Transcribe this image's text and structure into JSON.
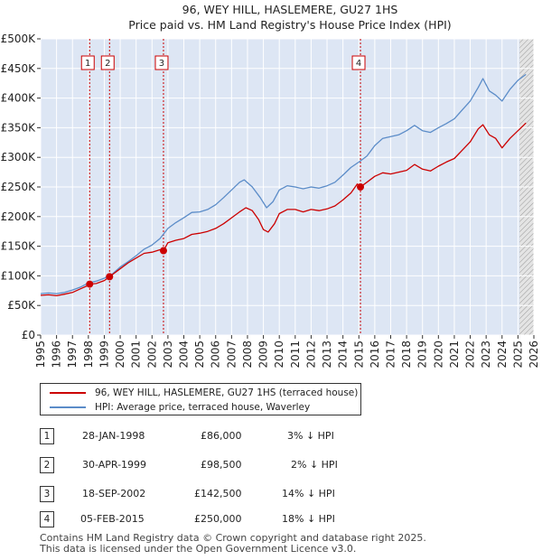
{
  "chart_data": {
    "type": "line",
    "title": "96, WEY HILL, HASLEMERE, GU27 1HS",
    "subtitle": "Price paid vs. HM Land Registry's House Price Index (HPI)",
    "xlim": [
      1995,
      2026
    ],
    "ylim": [
      0,
      500000
    ],
    "y_ticks": [
      {
        "value": 0,
        "label": "£0"
      },
      {
        "value": 50000,
        "label": "£50K"
      },
      {
        "value": 100000,
        "label": "£100K"
      },
      {
        "value": 150000,
        "label": "£150K"
      },
      {
        "value": 200000,
        "label": "£200K"
      },
      {
        "value": 250000,
        "label": "£250K"
      },
      {
        "value": 300000,
        "label": "£300K"
      },
      {
        "value": 350000,
        "label": "£350K"
      },
      {
        "value": 400000,
        "label": "£400K"
      },
      {
        "value": 450000,
        "label": "£450K"
      },
      {
        "value": 500000,
        "label": "£500K"
      }
    ],
    "x_ticks": [
      1995,
      1996,
      1997,
      1998,
      1999,
      2000,
      2001,
      2002,
      2003,
      2004,
      2005,
      2006,
      2007,
      2008,
      2009,
      2010,
      2011,
      2012,
      2013,
      2014,
      2015,
      2016,
      2017,
      2018,
      2019,
      2020,
      2021,
      2022,
      2023,
      2024,
      2025,
      2026
    ],
    "shaded_region": {
      "from": 2025.1,
      "to": 2026
    },
    "series": [
      {
        "name": "96, WEY HILL, HASLEMERE, GU27 1HS (terraced house)",
        "color": "#cc0000",
        "points": [
          [
            1995.0,
            67000
          ],
          [
            1995.5,
            68000
          ],
          [
            1996.0,
            66500
          ],
          [
            1996.5,
            69000
          ],
          [
            1997.0,
            72000
          ],
          [
            1997.5,
            78000
          ],
          [
            1998.0,
            84000
          ],
          [
            1998.08,
            86000
          ],
          [
            1998.5,
            87000
          ],
          [
            1999.0,
            92000
          ],
          [
            1999.33,
            98500
          ],
          [
            1999.8,
            108000
          ],
          [
            2000.5,
            122000
          ],
          [
            2001.0,
            130000
          ],
          [
            2001.5,
            138000
          ],
          [
            2002.0,
            140000
          ],
          [
            2002.5,
            144000
          ],
          [
            2002.72,
            142500
          ],
          [
            2003.0,
            156000
          ],
          [
            2003.5,
            160000
          ],
          [
            2004.0,
            163000
          ],
          [
            2004.5,
            170000
          ],
          [
            2005.0,
            172000
          ],
          [
            2005.5,
            175000
          ],
          [
            2006.0,
            180000
          ],
          [
            2006.5,
            188000
          ],
          [
            2007.0,
            198000
          ],
          [
            2007.5,
            208000
          ],
          [
            2007.9,
            215000
          ],
          [
            2008.3,
            210000
          ],
          [
            2008.7,
            195000
          ],
          [
            2009.0,
            178000
          ],
          [
            2009.3,
            174000
          ],
          [
            2009.7,
            188000
          ],
          [
            2010.0,
            205000
          ],
          [
            2010.5,
            212000
          ],
          [
            2011.0,
            212000
          ],
          [
            2011.5,
            208000
          ],
          [
            2012.0,
            212000
          ],
          [
            2012.5,
            210000
          ],
          [
            2013.0,
            213000
          ],
          [
            2013.5,
            218000
          ],
          [
            2014.0,
            228000
          ],
          [
            2014.5,
            240000
          ],
          [
            2014.9,
            255000
          ],
          [
            2015.1,
            250000
          ],
          [
            2015.5,
            258000
          ],
          [
            2016.0,
            268000
          ],
          [
            2016.5,
            274000
          ],
          [
            2017.0,
            272000
          ],
          [
            2017.5,
            275000
          ],
          [
            2018.0,
            278000
          ],
          [
            2018.5,
            288000
          ],
          [
            2019.0,
            280000
          ],
          [
            2019.5,
            277000
          ],
          [
            2020.0,
            285000
          ],
          [
            2020.5,
            292000
          ],
          [
            2021.0,
            298000
          ],
          [
            2021.5,
            312000
          ],
          [
            2022.0,
            326000
          ],
          [
            2022.5,
            348000
          ],
          [
            2022.8,
            355000
          ],
          [
            2023.2,
            338000
          ],
          [
            2023.6,
            332000
          ],
          [
            2024.0,
            316000
          ],
          [
            2024.5,
            332000
          ],
          [
            2025.0,
            345000
          ],
          [
            2025.5,
            358000
          ]
        ]
      },
      {
        "name": "HPI: Average price, terraced house, Waverley",
        "color": "#5b8cc8",
        "points": [
          [
            1995.0,
            70000
          ],
          [
            1995.5,
            71000
          ],
          [
            1996.0,
            70000
          ],
          [
            1996.5,
            72000
          ],
          [
            1997.0,
            76000
          ],
          [
            1997.5,
            81000
          ],
          [
            1998.0,
            88000
          ],
          [
            1998.5,
            91000
          ],
          [
            1999.0,
            96000
          ],
          [
            1999.5,
            103000
          ],
          [
            2000.0,
            115000
          ],
          [
            2000.5,
            124000
          ],
          [
            2001.0,
            134000
          ],
          [
            2001.5,
            145000
          ],
          [
            2002.0,
            152000
          ],
          [
            2002.5,
            163000
          ],
          [
            2003.0,
            180000
          ],
          [
            2003.5,
            190000
          ],
          [
            2004.0,
            198000
          ],
          [
            2004.5,
            207000
          ],
          [
            2005.0,
            208000
          ],
          [
            2005.5,
            212000
          ],
          [
            2006.0,
            220000
          ],
          [
            2006.5,
            232000
          ],
          [
            2007.0,
            245000
          ],
          [
            2007.5,
            258000
          ],
          [
            2007.8,
            262000
          ],
          [
            2008.3,
            250000
          ],
          [
            2008.8,
            232000
          ],
          [
            2009.2,
            215000
          ],
          [
            2009.6,
            225000
          ],
          [
            2010.0,
            245000
          ],
          [
            2010.5,
            252000
          ],
          [
            2011.0,
            250000
          ],
          [
            2011.5,
            247000
          ],
          [
            2012.0,
            250000
          ],
          [
            2012.5,
            248000
          ],
          [
            2013.0,
            252000
          ],
          [
            2013.5,
            258000
          ],
          [
            2014.0,
            270000
          ],
          [
            2014.5,
            283000
          ],
          [
            2015.0,
            292000
          ],
          [
            2015.5,
            302000
          ],
          [
            2016.0,
            320000
          ],
          [
            2016.5,
            332000
          ],
          [
            2017.0,
            335000
          ],
          [
            2017.5,
            338000
          ],
          [
            2018.0,
            345000
          ],
          [
            2018.5,
            354000
          ],
          [
            2019.0,
            345000
          ],
          [
            2019.5,
            342000
          ],
          [
            2020.0,
            350000
          ],
          [
            2020.5,
            357000
          ],
          [
            2021.0,
            365000
          ],
          [
            2021.5,
            380000
          ],
          [
            2022.0,
            395000
          ],
          [
            2022.5,
            418000
          ],
          [
            2022.8,
            433000
          ],
          [
            2023.2,
            412000
          ],
          [
            2023.6,
            405000
          ],
          [
            2024.0,
            395000
          ],
          [
            2024.5,
            415000
          ],
          [
            2025.0,
            430000
          ],
          [
            2025.5,
            440000
          ]
        ]
      }
    ],
    "transactions": [
      {
        "n": "1",
        "date": "28-JAN-1998",
        "price": "£86,000",
        "delta": "3% ↓ HPI",
        "year": 1998.08,
        "value": 86000
      },
      {
        "n": "2",
        "date": "30-APR-1999",
        "price": "£98,500",
        "delta": "2% ↓ HPI",
        "year": 1999.33,
        "value": 98500
      },
      {
        "n": "3",
        "date": "18-SEP-2002",
        "price": "£142,500",
        "delta": "14% ↓ HPI",
        "year": 2002.72,
        "value": 142500
      },
      {
        "n": "4",
        "date": "05-FEB-2015",
        "price": "£250,000",
        "delta": "18% ↓ HPI",
        "year": 2015.1,
        "value": 250000
      }
    ]
  },
  "legend": {
    "property_label": "96, WEY HILL, HASLEMERE, GU27 1HS (terraced house)",
    "hpi_label": "HPI: Average price, terraced house, Waverley"
  },
  "footer": {
    "line1": "Contains HM Land Registry data © Crown copyright and database right 2025.",
    "line2": "This data is licensed under the Open Government Licence v3.0."
  },
  "colors": {
    "property": "#cc0000",
    "hpi": "#5b8cc8",
    "plot_bg": "#dde6f4",
    "grid": "#ffffff"
  }
}
